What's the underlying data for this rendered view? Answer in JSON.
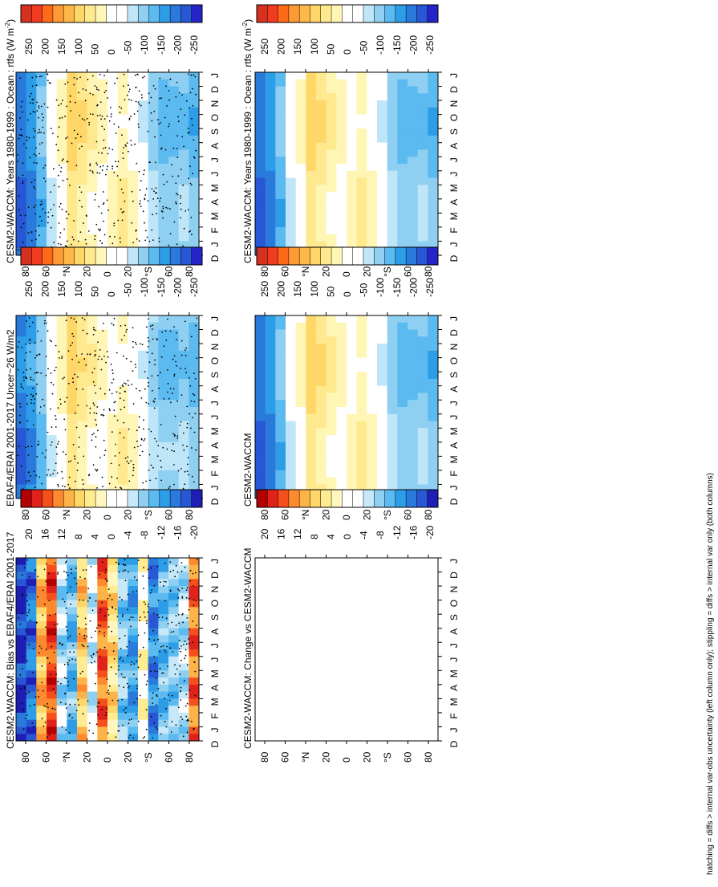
{
  "figure": {
    "footer": "hatching = diffs > internal var-obs uncertainty (left column only); stippling = diffs > internal var only (both columns)"
  },
  "palettes": {
    "large": [
      "#d7301f",
      "#f03b20",
      "#fd6b1a",
      "#fd9a35",
      "#feb84a",
      "#fed768",
      "#fee98e",
      "#fff6b5",
      "#ffffff",
      "#ffffff",
      "#bfe6f8",
      "#8fd0f2",
      "#5bbaf0",
      "#2d9de8",
      "#2a7adc",
      "#2757d4",
      "#2424c8"
    ],
    "small": [
      "#b30000",
      "#e0221a",
      "#f5501c",
      "#fd8a2e",
      "#feb349",
      "#fed768",
      "#ffeb90",
      "#fff7bf",
      "#ffffff",
      "#ffffff",
      "#c6e8f8",
      "#8fd0f2",
      "#5bbaf0",
      "#2d9de8",
      "#2a7adc",
      "#2757d4",
      "#1e1eb4"
    ]
  },
  "chart_data": [
    {
      "panel": "top-left",
      "type": "heatmap",
      "title": "CESM2-WACCM: Years 1980-1999 : Ocean : rtfs (W m",
      "title_sup": "-2",
      "title_end": ")",
      "x": [
        "D",
        "J",
        "F",
        "M",
        "A",
        "M",
        "J",
        "J",
        "A",
        "S",
        "O",
        "N",
        "D",
        "J"
      ],
      "y": [
        "80",
        "60",
        "°N",
        "20",
        "0",
        "20",
        "°S",
        "60",
        "80"
      ],
      "colorbar": [
        "250",
        "200",
        "150",
        "100",
        "50",
        "0",
        "-50",
        "-100",
        "-150",
        "-200",
        "-250"
      ],
      "palette": "large",
      "stipple": true,
      "zonal_profile": [
        -200,
        -170,
        -120,
        -40,
        10,
        85,
        60,
        35,
        10,
        15,
        40,
        15,
        -30,
        -80,
        -110,
        -105,
        -95,
        -120
      ]
    },
    {
      "panel": "top-right",
      "type": "heatmap",
      "title": "CESM2-WACCM: Years 1980-1999 : Ocean : rtfs (W m",
      "title_sup": "-2",
      "title_end": ")",
      "x": [
        "D",
        "J",
        "F",
        "M",
        "A",
        "M",
        "J",
        "J",
        "A",
        "S",
        "O",
        "N",
        "D",
        "J"
      ],
      "y": [
        "80",
        "60",
        "°N",
        "20",
        "0",
        "20",
        "°S",
        "60",
        "80"
      ],
      "colorbar": [
        "250",
        "200",
        "150",
        "100",
        "50",
        "0",
        "-50",
        "-100",
        "-150",
        "-200",
        "-250"
      ],
      "palette": "large",
      "stipple": false,
      "zonal_profile": [
        -200,
        -170,
        -120,
        -40,
        10,
        85,
        60,
        35,
        10,
        15,
        40,
        15,
        -30,
        -80,
        -110,
        -105,
        -95,
        -120
      ]
    },
    {
      "panel": "middle-left",
      "type": "heatmap",
      "title": "EBAF4/ERAI 2001-2017 Uncer~26 W/m2",
      "x": [
        "D",
        "J",
        "F",
        "M",
        "A",
        "M",
        "J",
        "J",
        "A",
        "S",
        "O",
        "N",
        "D",
        "J"
      ],
      "y": [
        "80",
        "60",
        "°N",
        "20",
        "0",
        "20",
        "°S",
        "60",
        "80"
      ],
      "colorbar": [
        "250",
        "200",
        "150",
        "100",
        "50",
        "0",
        "-50",
        "-100",
        "-150",
        "-200",
        "-250"
      ],
      "palette": "large",
      "stipple": true,
      "zonal_profile": [
        -190,
        -160,
        -110,
        -30,
        20,
        80,
        55,
        30,
        5,
        15,
        35,
        10,
        -25,
        -75,
        -100,
        -100,
        -90,
        -110
      ]
    },
    {
      "panel": "middle-right",
      "type": "heatmap",
      "title": "CESM2-WACCM",
      "x": [
        "D",
        "J",
        "F",
        "M",
        "A",
        "M",
        "J",
        "J",
        "A",
        "S",
        "O",
        "N",
        "D",
        "J"
      ],
      "y": [
        "80",
        "60",
        "°N",
        "20",
        "0",
        "20",
        "°S",
        "60",
        "80"
      ],
      "colorbar": [
        "250",
        "200",
        "150",
        "100",
        "50",
        "0",
        "-50",
        "-100",
        "-150",
        "-200",
        "-250"
      ],
      "palette": "large",
      "stipple": false,
      "zonal_profile": [
        -200,
        -170,
        -120,
        -40,
        10,
        85,
        60,
        35,
        10,
        15,
        40,
        15,
        -30,
        -80,
        -110,
        -105,
        -95,
        -120
      ]
    },
    {
      "panel": "bottom-left",
      "type": "heatmap",
      "title": "CESM2-WACCM: Bias vs EBAF4/ERAI 2001-2017",
      "x": [
        "D",
        "J",
        "F",
        "M",
        "A",
        "M",
        "J",
        "J",
        "A",
        "S",
        "O",
        "N",
        "D",
        "J"
      ],
      "y": [
        "80",
        "60",
        "°N",
        "20",
        "0",
        "20",
        "°S",
        "60",
        "80"
      ],
      "colorbar": [
        "20",
        "16",
        "12",
        "8",
        "4",
        "0",
        "-4",
        "-8",
        "-12",
        "-16",
        "-20"
      ],
      "palette": "small",
      "stipple": true,
      "zonal_profile": [
        -20,
        -16,
        10,
        16,
        -6,
        -10,
        8,
        -4,
        14,
        6,
        -8,
        -12,
        2,
        -14,
        -10,
        -8,
        -6,
        14
      ]
    },
    {
      "panel": "bottom-right",
      "type": "heatmap",
      "title": "CESM2-WACCM: Change vs CESM2-WACCM",
      "x": [
        "D",
        "J",
        "F",
        "M",
        "A",
        "M",
        "J",
        "J",
        "A",
        "S",
        "O",
        "N",
        "D",
        "J"
      ],
      "y": [
        "80",
        "60",
        "°N",
        "20",
        "0",
        "20",
        "°S",
        "60",
        "80"
      ],
      "colorbar": [
        "20",
        "16",
        "12",
        "8",
        "4",
        "0",
        "-4",
        "-8",
        "-12",
        "-16",
        "-20"
      ],
      "palette": "small",
      "stipple": false,
      "empty": true
    }
  ]
}
